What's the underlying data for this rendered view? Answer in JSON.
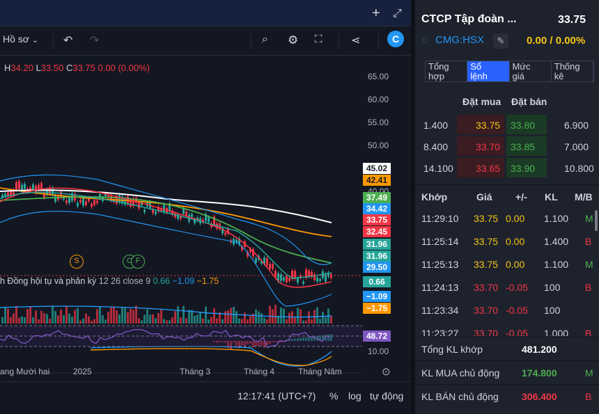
{
  "toolbar": {
    "profile_label": "Hồ sơ"
  },
  "ohlc": {
    "h_label": "H",
    "h": "34.20",
    "l_label": "L",
    "l": "33.50",
    "c_label": "C",
    "c": "33.75",
    "change": "0.00 (0.00%)"
  },
  "y_axis": {
    "ticks": [
      "65.00",
      "60.00",
      "55.00",
      "50.00",
      "40.00",
      "29.50",
      "10.00"
    ]
  },
  "price_tags": [
    {
      "text": "45.02",
      "bg": "#ffffff",
      "fg": "#131722"
    },
    {
      "text": "42.41",
      "bg": "#ff9800",
      "fg": "#131722"
    },
    {
      "text": "37.49",
      "bg": "#4caf50",
      "fg": "#ffffff"
    },
    {
      "text": "34.42",
      "bg": "#2196f3",
      "fg": "#ffffff"
    },
    {
      "text": "33.75",
      "bg": "#f23645",
      "fg": "#ffffff"
    },
    {
      "text": "32.45",
      "bg": "#f23645",
      "fg": "#ffffff"
    },
    {
      "text": "31.96",
      "bg": "#26a69a",
      "fg": "#ffffff"
    },
    {
      "text": "31.96",
      "bg": "#26a69a",
      "fg": "#ffffff"
    },
    {
      "text": "29.50",
      "bg": "#2196f3",
      "fg": "#ffffff"
    }
  ],
  "macd": {
    "title": "h Đồng hội tụ và phân kỳ",
    "params": "12 26 close 9",
    "v1": "0.66",
    "v2": "−1.09",
    "v3": "−1.75",
    "tags": [
      {
        "text": "0.66",
        "bg": "#26a69a"
      },
      {
        "text": "−1.09",
        "bg": "#2196f3"
      },
      {
        "text": "−1.75",
        "bg": "#ff9800"
      }
    ]
  },
  "rsi_tag": {
    "text": "48.72",
    "bg": "#7e57c2"
  },
  "x_axis": {
    "labels": [
      "ang Mười hai",
      "2025",
      "Tháng 3",
      "Tháng 4",
      "Tháng Năm"
    ]
  },
  "markers": {
    "s": "S",
    "c": "C",
    "f": "F"
  },
  "bottombar": {
    "time": "12:17:41 (UTC+7)",
    "percent": "%",
    "log": "log",
    "auto": "tự động"
  },
  "ticker": {
    "name": "CTCP Tập đoàn ...",
    "price": "33.75",
    "code": "CMG:HSX",
    "change": "0.00 / 0.00%"
  },
  "tabs": [
    {
      "label": "Tổng\nhợp",
      "active": false
    },
    {
      "label": "Sổ\nlệnh",
      "active": true
    },
    {
      "label": "Mức\ngiá",
      "active": false
    },
    {
      "label": "Thống\nkê",
      "active": false
    }
  ],
  "orderbook": {
    "headers": {
      "buy": "Đặt mua",
      "sell": "Đặt bán"
    },
    "rows": [
      {
        "buy_vol": "1.400",
        "buy_price": "33.75",
        "sell_price": "33.80",
        "sell_vol": "6.900"
      },
      {
        "buy_vol": "8.400",
        "buy_price": "33.70",
        "sell_price": "33.85",
        "sell_vol": "7.000"
      },
      {
        "buy_vol": "14.100",
        "buy_price": "33.65",
        "sell_price": "33.90",
        "sell_vol": "10.800"
      }
    ]
  },
  "trades": {
    "headers": {
      "time": "Khớp",
      "price": "Giá",
      "change": "+/-",
      "vol": "KL",
      "side": "M/B"
    },
    "rows": [
      {
        "time": "11:29:10",
        "price": "33.75",
        "change": "0.00",
        "vol": "1.100",
        "side": "M"
      },
      {
        "time": "11:25:14",
        "price": "33.75",
        "change": "0.00",
        "vol": "1.400",
        "side": "B"
      },
      {
        "time": "11:25:13",
        "price": "33.75",
        "change": "0.00",
        "vol": "1.100",
        "side": "M"
      },
      {
        "time": "11:24:13",
        "price": "33.70",
        "change": "-0.05",
        "vol": "100",
        "side": "B"
      },
      {
        "time": "11:23:34",
        "price": "33.70",
        "change": "-0.05",
        "vol": "100",
        "side": ""
      },
      {
        "time": "11:23:27",
        "price": "33.70",
        "change": "-0.05",
        "vol": "1.000",
        "side": "B"
      }
    ]
  },
  "summary": [
    {
      "label": "Tổng KL khớp",
      "value": "481.200",
      "side": ""
    },
    {
      "label": "KL MUA chủ động",
      "value": "174.800",
      "side": "M"
    },
    {
      "label": "KL BÁN chủ động",
      "value": "306.400",
      "side": "B"
    }
  ],
  "colors": {
    "up": "#26a69a",
    "down": "#f23645",
    "ref": "#f5c518",
    "buy_green": "#4caf50",
    "tab_active": "#2962ff"
  }
}
